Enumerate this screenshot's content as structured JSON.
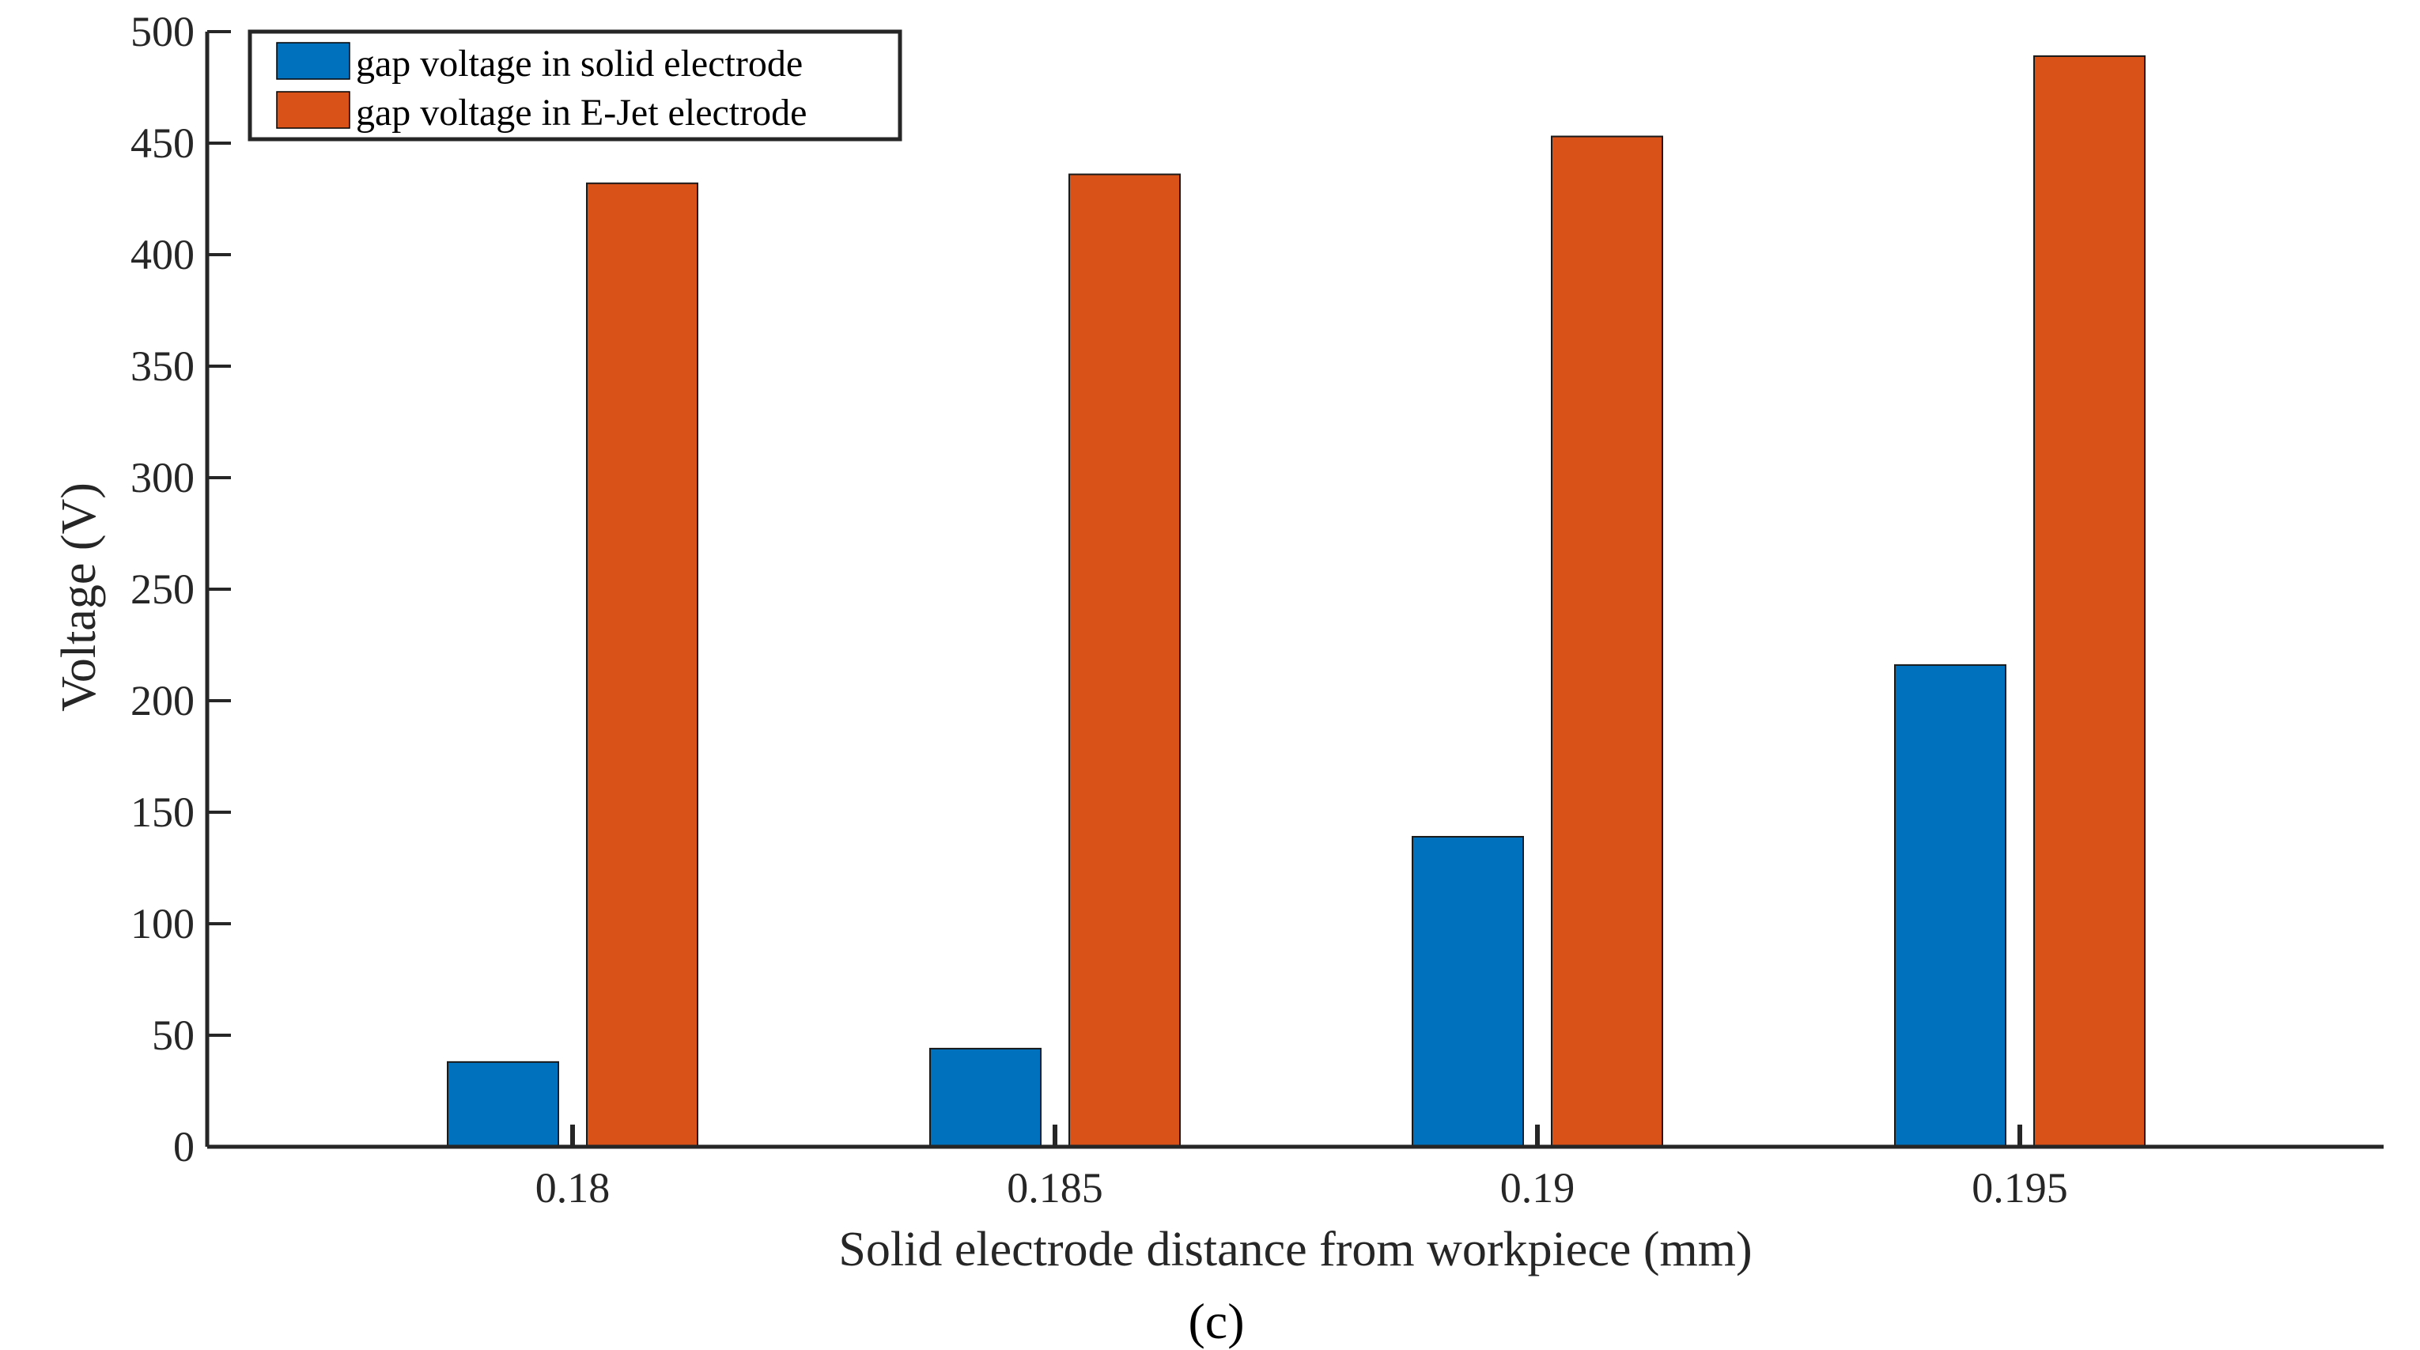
{
  "chart_data": {
    "type": "bar",
    "title": "",
    "xlabel": "Solid electrode distance from workpiece (mm)",
    "ylabel": "Voltage (V)",
    "panel_label": "(c)",
    "categories": [
      "0.18",
      "0.185",
      "0.19",
      "0.195"
    ],
    "ylim": [
      0,
      500
    ],
    "yticks": [
      0,
      50,
      100,
      150,
      200,
      250,
      300,
      350,
      400,
      450,
      500
    ],
    "ytick_labels": [
      "0",
      "50",
      "100",
      "150",
      "200",
      "250",
      "300",
      "350",
      "400",
      "450",
      "500"
    ],
    "grid": false,
    "legend_position": "top-left",
    "series": [
      {
        "name": "gap voltage in solid electrode",
        "color": "#0072BD",
        "values": [
          38,
          44,
          139,
          216
        ]
      },
      {
        "name": "gap voltage in E-Jet electrode",
        "color": "#D95319",
        "values": [
          432,
          436,
          453,
          489
        ]
      }
    ]
  }
}
